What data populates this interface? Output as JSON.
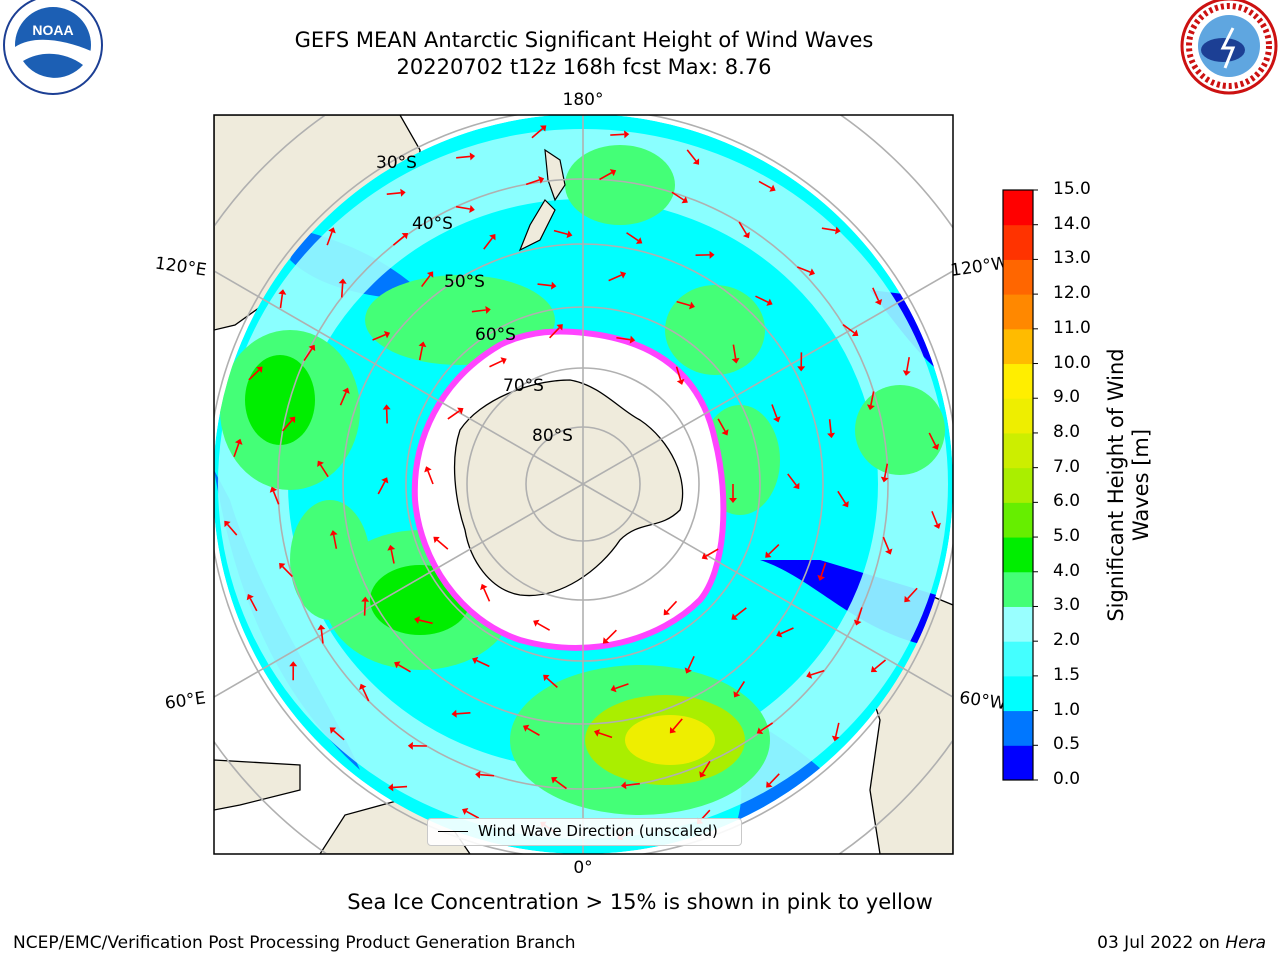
{
  "title": {
    "line1": "GEFS MEAN Antarctic Significant Height of Wind Waves",
    "line2": "20220702 t12z 168h fcst   Max: 8.76"
  },
  "logos": {
    "left": "noaa-logo",
    "right": "national-weather-service-logo",
    "noaa_text": "NOAA"
  },
  "map": {
    "projection": "south-polar-stereographic",
    "longitude_labels": [
      "180°",
      "120°E",
      "120°W",
      "60°E",
      "60°W",
      "0°"
    ],
    "latitude_labels": [
      "30°S",
      "40°S",
      "50°S",
      "60°S",
      "70°S",
      "80°S"
    ],
    "legend_entry": "Wind Wave Direction (unscaled)",
    "arrow_color": "#ff0000",
    "sea_ice_color": "#ff44ff"
  },
  "colorbar": {
    "label": "Significant Height of Wind Waves [m]",
    "ticks": [
      "0.0",
      "0.5",
      "1.0",
      "1.5",
      "2.0",
      "3.0",
      "4.0",
      "5.0",
      "6.0",
      "7.0",
      "8.0",
      "9.0",
      "10.0",
      "11.0",
      "12.0",
      "13.0",
      "14.0",
      "15.0"
    ],
    "colors": [
      "#0000ff",
      "#0077ff",
      "#00ffff",
      "#44ffff",
      "#99ffff",
      "#44ff77",
      "#00ee00",
      "#66ee00",
      "#aaee00",
      "#ccee00",
      "#eeee00",
      "#ffee00",
      "#ffbb00",
      "#ff8800",
      "#ff6600",
      "#ff3300",
      "#ff0000"
    ]
  },
  "caption": "Sea Ice Concentration > 15% is shown in pink to yellow",
  "footer": {
    "left": "NCEP/EMC/Verification Post Processing Product Generation Branch",
    "right_date": "03 Jul 2022 on ",
    "right_machine": "Hera"
  }
}
